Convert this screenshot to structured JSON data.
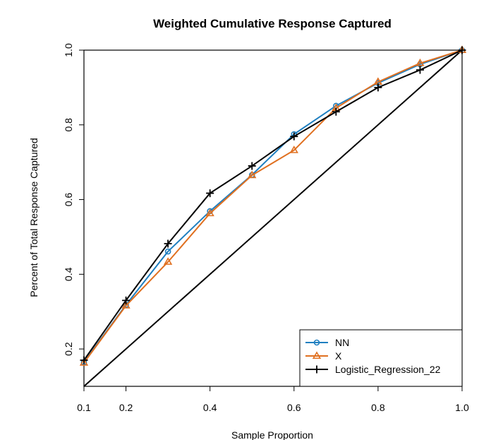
{
  "chart_data": {
    "type": "line",
    "title": "Weighted Cumulative Response Captured",
    "xlabel": "Sample Proportion",
    "ylabel": "Percent of Total Response Captured",
    "xlim": [
      0.1,
      1.0
    ],
    "ylim": [
      0.1,
      1.0
    ],
    "x_ticks": [
      0.1,
      0.2,
      0.4,
      0.6,
      0.8,
      1.0
    ],
    "x_tick_labels": [
      "0.1",
      "0.2",
      "0.4",
      "0.6",
      "0.8",
      "1.0"
    ],
    "y_ticks": [
      0.2,
      0.4,
      0.6,
      0.8,
      1.0
    ],
    "y_tick_labels": [
      "0.2",
      "0.4",
      "0.6",
      "0.8",
      "1.0"
    ],
    "legend_position": "bottom-right",
    "x": [
      0.1,
      0.2,
      0.3,
      0.4,
      0.5,
      0.6,
      0.7,
      0.8,
      0.9,
      1.0
    ],
    "series": [
      {
        "name": "NN",
        "color": "#1f7fc0",
        "marker": "circle",
        "values": [
          0.165,
          0.318,
          0.461,
          0.569,
          0.666,
          0.775,
          0.851,
          0.912,
          0.962,
          1.0
        ]
      },
      {
        "name": "X",
        "color": "#e07020",
        "marker": "triangle",
        "values": [
          0.163,
          0.316,
          0.433,
          0.563,
          0.665,
          0.732,
          0.845,
          0.915,
          0.965,
          1.0
        ]
      },
      {
        "name": "Logistic_Regression_22",
        "color": "#000000",
        "marker": "plus",
        "values": [
          0.17,
          0.33,
          0.482,
          0.617,
          0.69,
          0.769,
          0.835,
          0.9,
          0.947,
          1.0
        ]
      }
    ],
    "reference_line": {
      "x": [
        0.1,
        1.0
      ],
      "y": [
        0.1,
        1.0
      ],
      "color": "#000000"
    }
  }
}
